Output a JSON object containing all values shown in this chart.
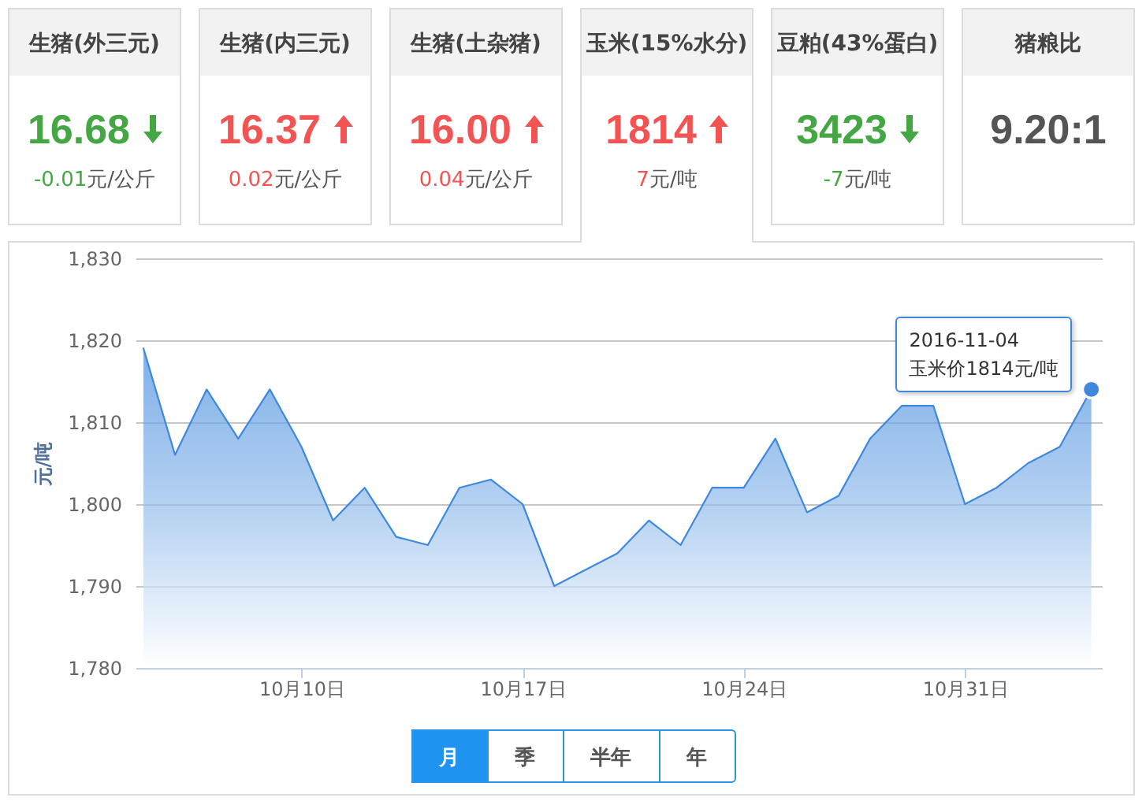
{
  "chart_data": [
    {
      "type": "other",
      "categories": [
        "生猪(外三元)",
        "生猪(内三元)",
        "生猪(土杂猪)",
        "玉米(15%水分)",
        "豆粕(43%蛋白)",
        "猪粮比"
      ],
      "series": [
        {
          "values": [
            16.68,
            16.37,
            16.0,
            1814,
            3423,
            9.2
          ],
          "value_labels": [
            "16.68",
            "16.37",
            "16.00",
            "1814",
            "3423",
            "9.20:1"
          ]
        },
        {
          "values": [
            -0.01,
            0.02,
            0.04,
            7,
            -7,
            null
          ],
          "value_labels": [
            "-0.01元/公斤",
            "0.02元/公斤",
            "0.04元/公斤",
            "7元/吨",
            "-7元/吨",
            null
          ]
        }
      ]
    },
    {
      "type": "area",
      "ylabel": "元/吨",
      "x": [
        "2016-10-05",
        "2016-10-06",
        "2016-10-07",
        "2016-10-08",
        "2016-10-09",
        "2016-10-10",
        "2016-10-11",
        "2016-10-12",
        "2016-10-13",
        "2016-10-14",
        "2016-10-15",
        "2016-10-16",
        "2016-10-17",
        "2016-10-18",
        "2016-10-19",
        "2016-10-20",
        "2016-10-21",
        "2016-10-22",
        "2016-10-23",
        "2016-10-24",
        "2016-10-25",
        "2016-10-26",
        "2016-10-27",
        "2016-10-28",
        "2016-10-29",
        "2016-10-30",
        "2016-10-31",
        "2016-11-01",
        "2016-11-02",
        "2016-11-03",
        "2016-11-04"
      ],
      "series": [
        {
          "color": "#3f88dc",
          "values": [
            1819,
            1806,
            1814,
            1808,
            1814,
            1807,
            1798,
            1802,
            1796,
            1795,
            1802,
            1803,
            1800,
            1790,
            1792,
            1794,
            1798,
            1795,
            1802,
            1802,
            1808,
            1799,
            1801,
            1808,
            1812,
            1812,
            1800,
            1802,
            1805,
            1807,
            1814
          ]
        }
      ],
      "xlim": [
        "2016-10-04T18:00",
        "2016-11-04T08:00"
      ],
      "xticks": [
        {
          "value": "2016-10-10",
          "label": "10月10日"
        },
        {
          "value": "2016-10-17",
          "label": "10月17日"
        },
        {
          "value": "2016-10-24",
          "label": "10月24日"
        },
        {
          "value": "2016-10-31",
          "label": "10月31日"
        }
      ],
      "ylim": [
        1780,
        1830
      ],
      "yticks": [
        {
          "value": 1780,
          "label": "1,780"
        },
        {
          "value": 1790,
          "label": "1,790"
        },
        {
          "value": 1800,
          "label": "1,800"
        },
        {
          "value": 1810,
          "label": "1,810"
        },
        {
          "value": 1820,
          "label": "1,820"
        },
        {
          "value": 1830,
          "label": "1,830"
        }
      ],
      "grid": "y",
      "annotations": [
        {
          "text": "2016-11-04\n玉米价1814元/吨",
          "x": "2016-11-04",
          "y": 1814
        },
        "月",
        "季",
        "半年",
        "年"
      ]
    }
  ]
}
